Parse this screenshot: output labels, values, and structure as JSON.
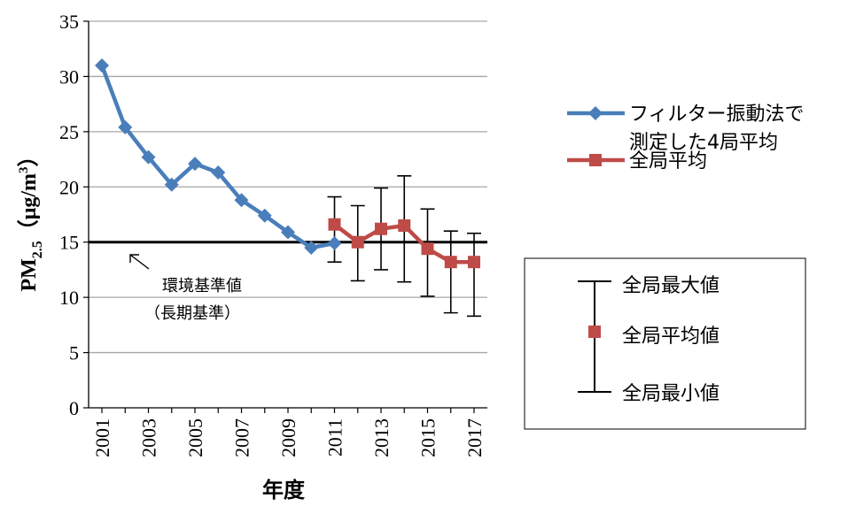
{
  "chart_data": {
    "type": "line",
    "xlabel": "年度",
    "ylabel_main": "PM",
    "ylabel_sub": "2.5",
    "ylabel_unit_open": "（μg/m",
    "ylabel_unit_sup": "3",
    "ylabel_unit_close": "）",
    "ylim": [
      0,
      35
    ],
    "yticks": [
      0,
      5,
      10,
      15,
      20,
      25,
      30,
      35
    ],
    "xlim": [
      2001,
      2017
    ],
    "xtick_labels": [
      "2001",
      "2003",
      "2005",
      "2007",
      "2009",
      "2011",
      "2013",
      "2015",
      "2017"
    ],
    "grid": true,
    "legend_placement": "right",
    "series": [
      {
        "name_line1": "フィルター振動法で",
        "name_line2": "測定した4局平均",
        "color": "#4a7ebb",
        "marker": "diamond",
        "x": [
          2001,
          2002,
          2003,
          2004,
          2005,
          2006,
          2007,
          2008,
          2009,
          2010,
          2011
        ],
        "y": [
          31.0,
          25.4,
          22.7,
          20.2,
          22.1,
          21.3,
          18.8,
          17.4,
          15.9,
          14.5,
          14.9
        ]
      },
      {
        "name": "全局平均",
        "color": "#be4b48",
        "marker": "square",
        "x": [
          2011,
          2012,
          2013,
          2014,
          2015,
          2016,
          2017
        ],
        "y": [
          16.6,
          15.0,
          16.2,
          16.5,
          14.4,
          13.2,
          13.2
        ],
        "error_max": [
          19.1,
          18.3,
          19.9,
          21.0,
          18.0,
          16.0,
          15.8
        ],
        "error_min": [
          13.2,
          11.5,
          12.5,
          11.4,
          10.1,
          8.6,
          8.3
        ]
      }
    ],
    "reference_line": {
      "value": 15,
      "label_line1": "環境基準値",
      "label_line2": "（長期基準）"
    },
    "errorbar_legend": {
      "max_label": "全局最大値",
      "mean_label": "全局平均値",
      "min_label": "全局最小値"
    },
    "colors": {
      "grid": "#a6a6a6",
      "axis": "#000000"
    }
  }
}
